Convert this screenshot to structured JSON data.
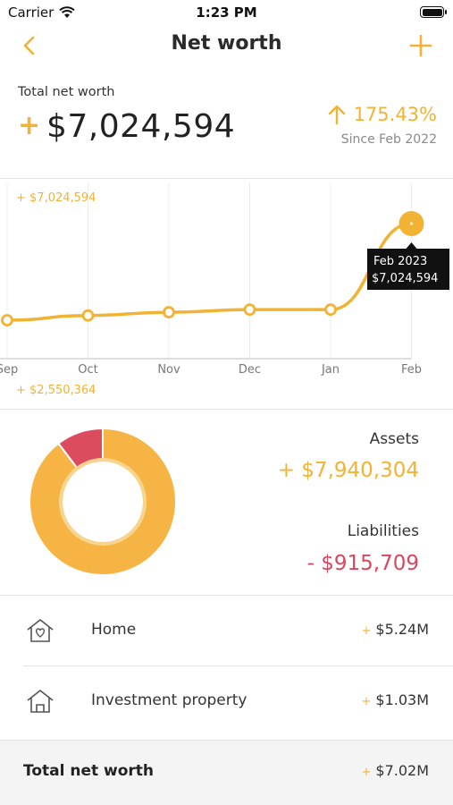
{
  "status_bar": {
    "carrier": "Carrier",
    "time": "1:23 PM"
  },
  "nav": {
    "title": "Net worth",
    "back_icon": "chevron-left-icon",
    "add_icon": "plus-icon"
  },
  "summary": {
    "label": "Total net worth",
    "sign": "+",
    "value": "$7,024,594",
    "change": "175.43%",
    "change_icon": "arrow-up-icon",
    "since": "Since Feb 2022"
  },
  "chart_data": {
    "type": "line",
    "categories": [
      "Sep",
      "Oct",
      "Nov",
      "Dec",
      "Jan",
      "Feb"
    ],
    "values": [
      2550364,
      2770000,
      2920000,
      3040000,
      3040000,
      7024594
    ],
    "max_label": "+ $7,024,594",
    "min_label": "+ $2,550,364",
    "tooltip": {
      "date": "Feb 2023",
      "value": "$7,024,594"
    },
    "color": "#f2b234"
  },
  "breakdown": {
    "assets_label": "Assets",
    "assets_value": "+ $7,940,304",
    "assets_amount": 7940304,
    "liabilities_label": "Liabilities",
    "liabilities_value": "- $915,709",
    "liabilities_amount": 915709,
    "assets_color": "#f5b443",
    "liabilities_color": "#dc4c5f"
  },
  "items": [
    {
      "label": "Home",
      "sign": "+",
      "value": "$5.24M",
      "icon": "house-heart-icon"
    },
    {
      "label": "Investment property",
      "sign": "+",
      "value": "$1.03M",
      "icon": "house-icon"
    }
  ],
  "footer": {
    "label": "Total net worth",
    "sign": "+",
    "value": "$7.02M"
  }
}
